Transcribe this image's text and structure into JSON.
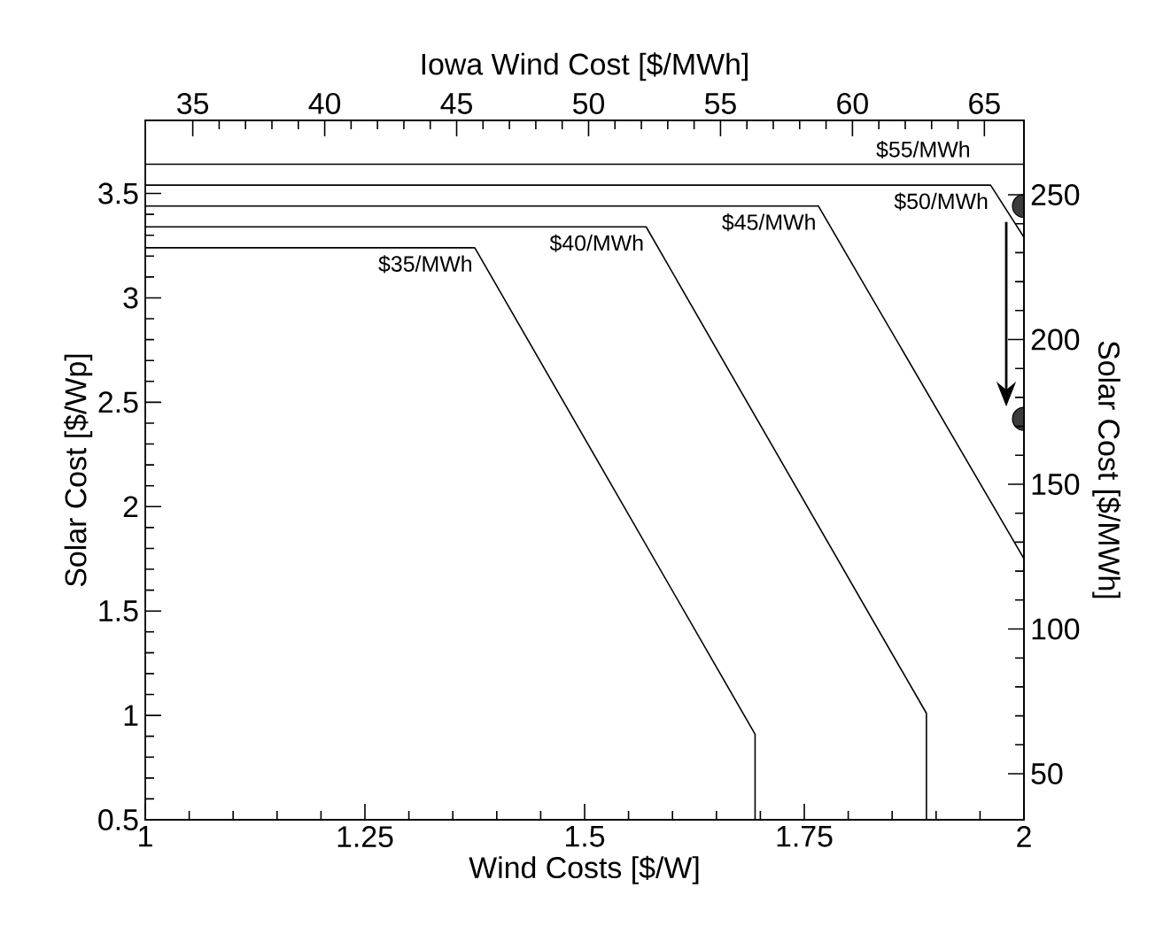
{
  "chart_data": {
    "type": "line",
    "xlabel": "Wind Costs [$/W]",
    "ylabel": "Solar Cost [$/Wp]",
    "x2label": "Iowa Wind Cost [$/MWh]",
    "y2label": "Solar Cost [$/MWh]",
    "xlim": [
      1,
      2
    ],
    "xticks": [
      1,
      1.25,
      1.5,
      1.75,
      2
    ],
    "ylim": [
      0.5,
      3.85
    ],
    "yticks": [
      0.5,
      1,
      1.5,
      2,
      2.5,
      3,
      3.5
    ],
    "x2lim": [
      33.2,
      66.5
    ],
    "x2ticks": [
      35,
      40,
      45,
      50,
      55,
      60,
      65
    ],
    "y2lim": [
      34.1,
      275.7
    ],
    "y2ticks": [
      50,
      100,
      150,
      200,
      250
    ],
    "marker": "none",
    "line_style": "solid",
    "series": [
      {
        "name": "$55/MWh",
        "color": "#000000",
        "x": [
          1,
          2
        ],
        "values": [
          3.64,
          3.64
        ]
      },
      {
        "name": "$50/MWh",
        "color": "#000000",
        "x": [
          1,
          1.962,
          2
        ],
        "values": [
          3.54,
          3.54,
          3.29
        ]
      },
      {
        "name": "$45/MWh",
        "color": "#000000",
        "x": [
          1,
          1.766,
          2
        ],
        "values": [
          3.44,
          3.44,
          1.75
        ]
      },
      {
        "name": "$40/MWh",
        "color": "#000000",
        "x": [
          1,
          1.57,
          1.889,
          1.889
        ],
        "values": [
          3.34,
          3.34,
          1.01,
          0.5
        ]
      },
      {
        "name": "$35/MWh",
        "color": "#000000",
        "x": [
          1,
          1.375,
          1.694,
          1.694
        ],
        "values": [
          3.24,
          3.24,
          0.91,
          0.5
        ]
      },
      {
        "type": "scatter",
        "color": "#3c3c3c",
        "marker": "circle",
        "x": [
          2,
          2
        ],
        "values": [
          3.44,
          2.42
        ]
      }
    ]
  }
}
